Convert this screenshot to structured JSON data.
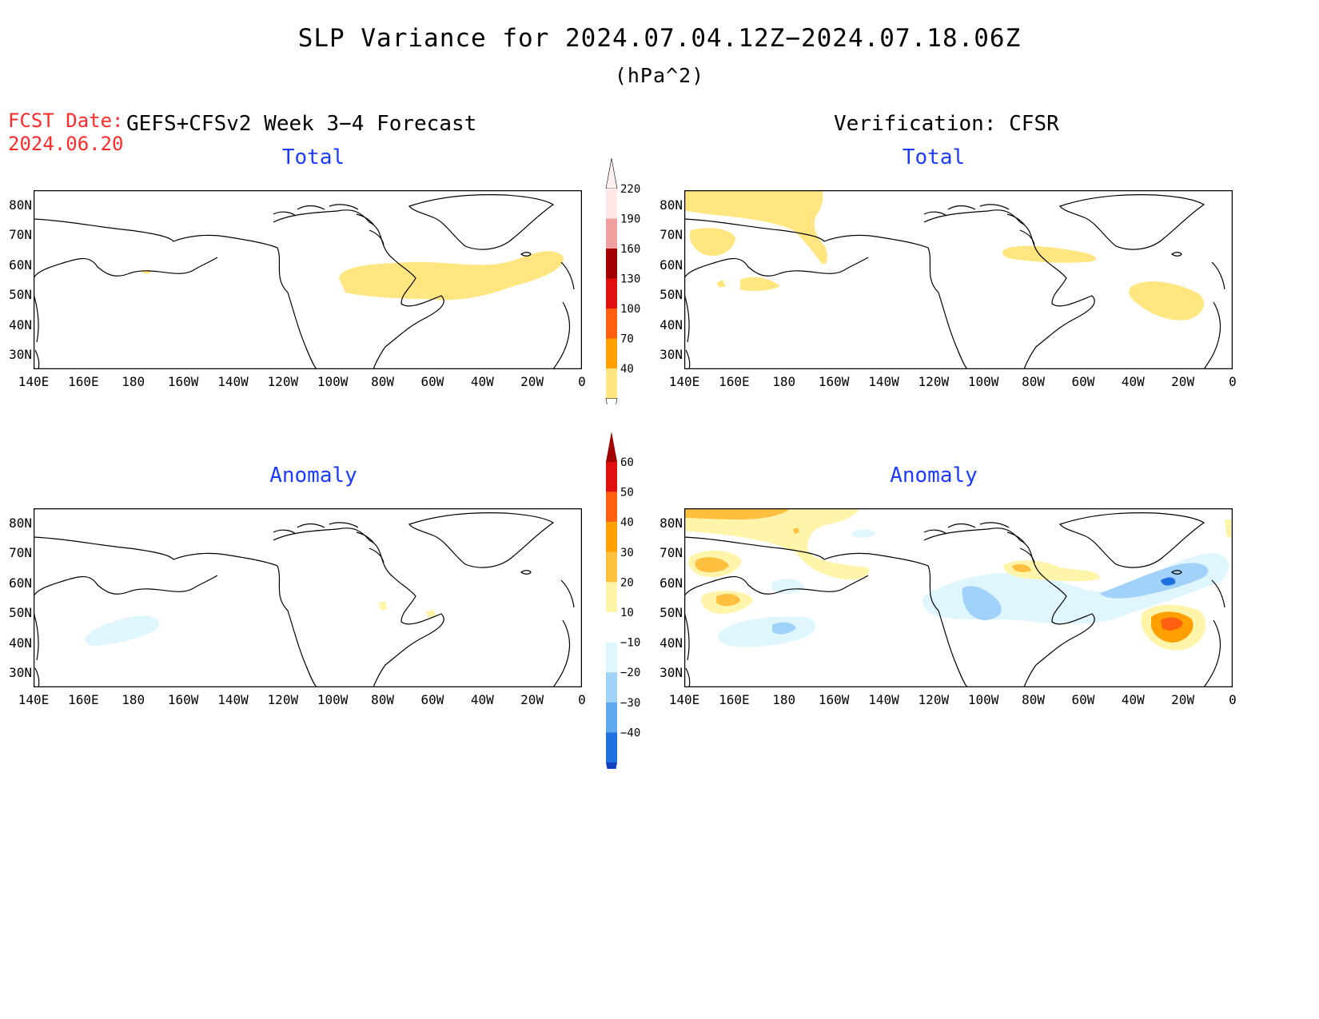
{
  "title": "SLP Variance for 2024.07.04.12Z−2024.07.18.06Z",
  "units": "(hPa^2)",
  "forecast": {
    "date_label": "FCST Date:",
    "date_value": "2024.06.20",
    "column_title": "GEFS+CFSv2 Week 3−4 Forecast"
  },
  "verification": {
    "column_title": "Verification: CFSR"
  },
  "panels": {
    "forecast_total": {
      "title": "Total"
    },
    "verif_total": {
      "title": "Total"
    },
    "forecast_anomaly": {
      "title": "Anomaly"
    },
    "verif_anomaly": {
      "title": "Anomaly"
    }
  },
  "map": {
    "lat_labels": [
      "80N",
      "70N",
      "60N",
      "50N",
      "40N",
      "30N"
    ],
    "lon_labels": [
      "140E",
      "160E",
      "180",
      "160W",
      "140W",
      "120W",
      "100W",
      "80W",
      "60W",
      "40W",
      "20W",
      "0"
    ]
  },
  "colorbars": {
    "total": {
      "levels": [
        "220",
        "190",
        "160",
        "130",
        "100",
        "70",
        "40"
      ],
      "colors": [
        "#ffe8e8",
        "#f0a0a0",
        "#a00000",
        "#e01010",
        "#ff6010",
        "#ffa000",
        "#ffe680"
      ]
    },
    "anomaly": {
      "levels": [
        "60",
        "50",
        "40",
        "30",
        "20",
        "10",
        "−10",
        "−20",
        "−30",
        "−40"
      ],
      "colors": [
        "#a00000",
        "#e01010",
        "#ff6010",
        "#ffa000",
        "#ffc040",
        "#fff5aa",
        "#ffffff",
        "#dff6ff",
        "#a0d2fa",
        "#60a8f0",
        "#2070e0",
        "#1040c0"
      ]
    }
  }
}
